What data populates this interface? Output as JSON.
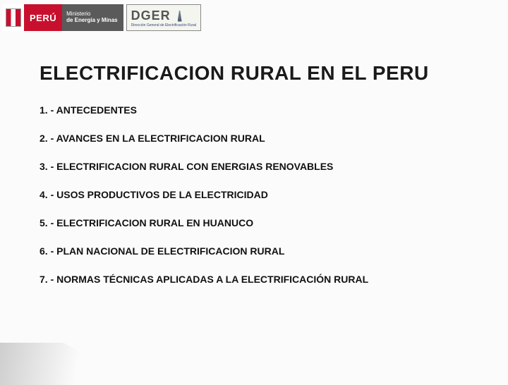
{
  "header": {
    "peru_label": "PERÚ",
    "ministerio_line1": "Ministerio",
    "ministerio_line2": "de Energía y Minas",
    "dger_label": "DGER",
    "dger_sub": "Dirección General de Electrificación Rural"
  },
  "title": "ELECTRIFICACION RURAL EN EL PERU",
  "items": [
    "1. - ANTECEDENTES",
    "2. - AVANCES EN LA ELECTRIFICACION RURAL",
    "3. - ELECTRIFICACION RURAL CON ENERGIAS RENOVABLES",
    "4. - USOS PRODUCTIVOS DE LA ELECTRICIDAD",
    "5. - ELECTRIFICACION RURAL EN HUANUCO",
    "6. - PLAN NACIONAL DE ELECTRIFICACION RURAL",
    "7. - NORMAS TÉCNICAS APLICADAS A LA ELECTRIFICACIÓN RURAL"
  ],
  "colors": {
    "peru_red": "#c8102e",
    "ministerio_bg": "#5a5a5a",
    "text": "#111111",
    "background": "#fbfbfb"
  }
}
